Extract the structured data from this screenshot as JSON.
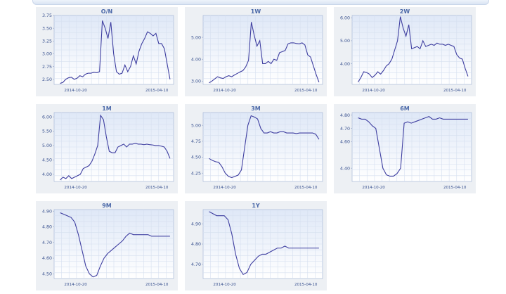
{
  "chart_data": [
    {
      "type": "line",
      "title": "O/N",
      "xticks": [
        "2014-10-20",
        "2015-04-10"
      ],
      "yticks": [
        "2.50",
        "2.75",
        "3.00",
        "3.25",
        "3.50",
        "3.75"
      ],
      "ylim": [
        2.4,
        3.75
      ],
      "values": [
        2.42,
        2.44,
        2.5,
        2.53,
        2.54,
        2.5,
        2.52,
        2.57,
        2.55,
        2.6,
        2.62,
        2.62,
        2.64,
        2.63,
        2.65,
        3.65,
        3.5,
        3.3,
        3.62,
        3.0,
        2.65,
        2.6,
        2.62,
        2.78,
        2.65,
        2.75,
        2.96,
        2.8,
        3.05,
        3.2,
        3.3,
        3.43,
        3.4,
        3.35,
        3.4,
        3.2,
        3.2,
        3.1,
        2.8,
        2.5
      ]
    },
    {
      "type": "line",
      "title": "1W",
      "xticks": [
        "2014-10-20",
        "2015-04-10"
      ],
      "yticks": [
        "3.00",
        "4.00",
        "5.00"
      ],
      "ylim": [
        2.85,
        6.0
      ],
      "values": [
        2.92,
        3.0,
        3.1,
        3.2,
        3.15,
        3.12,
        3.2,
        3.25,
        3.2,
        3.28,
        3.35,
        3.42,
        3.48,
        3.65,
        3.95,
        5.7,
        5.1,
        4.6,
        4.85,
        3.8,
        3.8,
        3.9,
        3.8,
        4.0,
        3.95,
        4.3,
        4.35,
        4.4,
        4.7,
        4.75,
        4.75,
        4.72,
        4.7,
        4.75,
        4.65,
        4.2,
        4.1,
        3.7,
        3.3,
        2.95
      ]
    },
    {
      "type": "line",
      "title": "2W",
      "xticks": [
        "2014-10-20",
        "2015-04-10"
      ],
      "yticks": [
        "4.00",
        "5.00",
        "6.00"
      ],
      "ylim": [
        3.1,
        6.1
      ],
      "values": [
        3.2,
        3.4,
        3.65,
        3.62,
        3.55,
        3.4,
        3.5,
        3.65,
        3.55,
        3.7,
        3.9,
        4.0,
        4.2,
        4.6,
        5.0,
        6.05,
        5.55,
        5.2,
        5.7,
        4.65,
        4.7,
        4.75,
        4.65,
        5.0,
        4.75,
        4.8,
        4.85,
        4.8,
        4.9,
        4.85,
        4.85,
        4.8,
        4.85,
        4.8,
        4.75,
        4.4,
        4.25,
        4.2,
        3.8,
        3.45
      ]
    },
    {
      "type": "line",
      "title": "1M",
      "xticks": [
        "2014-10-20",
        "2015-04-10"
      ],
      "yticks": [
        "4.00",
        "4.50",
        "5.00",
        "5.50",
        "6.00"
      ],
      "ylim": [
        3.75,
        6.15
      ],
      "values": [
        3.8,
        3.9,
        3.85,
        3.95,
        3.85,
        3.9,
        3.95,
        4.0,
        4.2,
        4.25,
        4.3,
        4.45,
        4.7,
        5.0,
        6.05,
        5.9,
        5.3,
        4.8,
        4.75,
        4.75,
        4.95,
        5.0,
        5.05,
        4.95,
        5.05,
        5.05,
        5.08,
        5.05,
        5.05,
        5.03,
        5.05,
        5.03,
        5.02,
        5.0,
        5.0,
        4.98,
        4.95,
        4.8,
        4.55
      ]
    },
    {
      "type": "line",
      "title": "3M",
      "xticks": [
        "2014-10-20",
        "2015-04-10"
      ],
      "yticks": [
        "4.25",
        "4.50",
        "4.75",
        "5.00"
      ],
      "ylim": [
        4.12,
        5.2
      ],
      "values": [
        4.48,
        4.45,
        4.43,
        4.42,
        4.35,
        4.25,
        4.2,
        4.18,
        4.2,
        4.22,
        4.3,
        4.65,
        5.0,
        5.15,
        5.13,
        5.1,
        4.95,
        4.88,
        4.88,
        4.9,
        4.88,
        4.88,
        4.9,
        4.9,
        4.88,
        4.88,
        4.88,
        4.87,
        4.88,
        4.88,
        4.88,
        4.88,
        4.88,
        4.86,
        4.78
      ]
    },
    {
      "type": "line",
      "title": "6M",
      "xticks": [
        "2014-10-20",
        "2015-04-10"
      ],
      "yticks": [
        "4.40",
        "4.60",
        "4.70",
        "4.80"
      ],
      "ylim": [
        4.3,
        4.82
      ],
      "values": [
        4.78,
        4.77,
        4.77,
        4.75,
        4.72,
        4.7,
        4.55,
        4.4,
        4.35,
        4.34,
        4.34,
        4.36,
        4.4,
        4.74,
        4.75,
        4.74,
        4.75,
        4.76,
        4.77,
        4.78,
        4.79,
        4.77,
        4.77,
        4.78,
        4.77,
        4.77,
        4.77,
        4.77,
        4.77,
        4.77,
        4.77,
        4.77
      ]
    },
    {
      "type": "line",
      "title": "9M",
      "xticks": [
        "2014-10-20",
        "2015-04-10"
      ],
      "yticks": [
        "4.50",
        "4.60",
        "4.70",
        "4.80",
        "4.90"
      ],
      "ylim": [
        4.47,
        4.91
      ],
      "values": [
        4.89,
        4.88,
        4.87,
        4.86,
        4.83,
        4.75,
        4.65,
        4.55,
        4.5,
        4.48,
        4.49,
        4.55,
        4.6,
        4.63,
        4.65,
        4.67,
        4.69,
        4.71,
        4.74,
        4.76,
        4.75,
        4.75,
        4.75,
        4.75,
        4.75,
        4.74,
        4.74,
        4.74,
        4.74,
        4.74,
        4.74
      ]
    },
    {
      "type": "line",
      "title": "1Y",
      "xticks": [
        "2014-10-20",
        "2015-04-10"
      ],
      "yticks": [
        "4.70",
        "4.80",
        "4.90"
      ],
      "ylim": [
        4.63,
        4.97
      ],
      "values": [
        4.96,
        4.95,
        4.94,
        4.94,
        4.94,
        4.92,
        4.85,
        4.75,
        4.68,
        4.65,
        4.66,
        4.7,
        4.72,
        4.74,
        4.75,
        4.75,
        4.76,
        4.77,
        4.78,
        4.78,
        4.79,
        4.78,
        4.78,
        4.78,
        4.78,
        4.78,
        4.78,
        4.78,
        4.78,
        4.78
      ]
    }
  ]
}
